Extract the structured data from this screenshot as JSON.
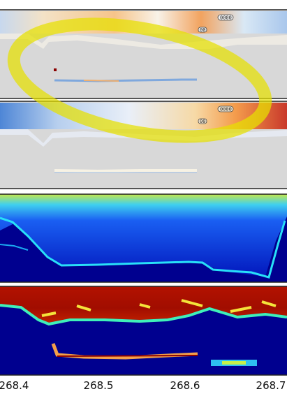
{
  "chart_data": {
    "type": "heatmap",
    "panels": [
      {
        "name": "panel-1",
        "colormap": "blue-white-red"
      },
      {
        "name": "panel-2",
        "colormap": "blue-white-red"
      },
      {
        "name": "panel-3",
        "colormap": "jet"
      },
      {
        "name": "panel-4",
        "colormap": "jet"
      }
    ],
    "x_axis": {
      "ticks": [
        "268.4",
        "268.5",
        "268.6",
        "268.7"
      ],
      "range": [
        268.4,
        268.72
      ]
    },
    "annotation": {
      "shape": "ellipse",
      "color": "#e6e000",
      "spans_panels": [
        "panel-1",
        "panel-2"
      ]
    },
    "markers": [
      {
        "label": "0000"
      },
      {
        "label": "00"
      }
    ],
    "grid": false,
    "legend": "none"
  },
  "colors": {
    "panel_background": "#d9d9d9",
    "deep_blue": "#00008f",
    "dark_red": "#8a0000",
    "highlight": "#e6e000"
  }
}
